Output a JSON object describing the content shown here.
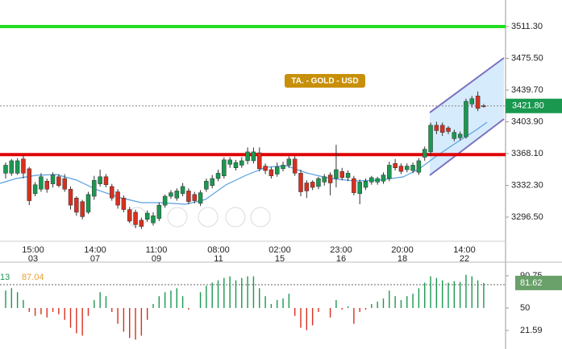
{
  "chart_data": {
    "type": "candlestick",
    "title": "TA. - GOLD - USD",
    "x_labels": [
      {
        "time": "15:00",
        "date": "03"
      },
      {
        "time": "14:00",
        "date": "07"
      },
      {
        "time": "11:00",
        "date": "09"
      },
      {
        "time": "08:00",
        "date": "11"
      },
      {
        "time": "02:00",
        "date": "15"
      },
      {
        "time": "23:00",
        "date": "16"
      },
      {
        "time": "20:00",
        "date": "18"
      },
      {
        "time": "14:00",
        "date": "22"
      }
    ],
    "open": [
      3346,
      3346,
      3346,
      3362,
      3351,
      3323,
      3328,
      3337,
      3334,
      3342,
      3340,
      3328,
      3318,
      3314,
      3302,
      3320,
      3334,
      3342,
      3331,
      3325,
      3318,
      3305,
      3302,
      3293,
      3294,
      3290,
      3295,
      3310,
      3320,
      3318,
      3323,
      3326,
      3322,
      3312,
      3328,
      3332,
      3340,
      3343,
      3356,
      3352,
      3355,
      3360,
      3360,
      3369,
      3354,
      3350,
      3345,
      3351,
      3355,
      3362,
      3346,
      3335,
      3336,
      3331,
      3336,
      3344,
      3340,
      3348,
      3341,
      3340,
      3323,
      3330,
      3336,
      3336,
      3337,
      3340,
      3357,
      3354,
      3350,
      3349,
      3347,
      3364,
      3370,
      3400,
      3400,
      3397,
      3385,
      3386,
      3387,
      3424,
      3433,
      3422
    ],
    "high": [
      3358,
      3362,
      3363,
      3366,
      3353,
      3336,
      3346,
      3340,
      3347,
      3345,
      3345,
      3331,
      3320,
      3316,
      3325,
      3343,
      3350,
      3345,
      3334,
      3328,
      3321,
      3308,
      3305,
      3296,
      3304,
      3302,
      3313,
      3322,
      3327,
      3329,
      3335,
      3329,
      3325,
      3327,
      3340,
      3344,
      3350,
      3364,
      3364,
      3361,
      3364,
      3375,
      3375,
      3375,
      3357,
      3353,
      3358,
      3359,
      3365,
      3365,
      3350,
      3338,
      3338,
      3342,
      3345,
      3347,
      3378,
      3352,
      3349,
      3343,
      3339,
      3340,
      3343,
      3342,
      3347,
      3359,
      3362,
      3357,
      3357,
      3358,
      3363,
      3376,
      3403,
      3404,
      3403,
      3399,
      3395,
      3393,
      3430,
      3433,
      3438,
      3424
    ],
    "low": [
      3340,
      3343,
      3344,
      3340,
      3310,
      3320,
      3325,
      3324,
      3330,
      3330,
      3325,
      3305,
      3298,
      3294,
      3300,
      3316,
      3331,
      3330,
      3315,
      3306,
      3302,
      3290,
      3284,
      3283,
      3291,
      3287,
      3292,
      3307,
      3317,
      3315,
      3320,
      3311,
      3312,
      3309,
      3325,
      3329,
      3337,
      3340,
      3352,
      3349,
      3352,
      3356,
      3357,
      3348,
      3345,
      3340,
      3342,
      3348,
      3352,
      3343,
      3320,
      3318,
      3327,
      3328,
      3332,
      3321,
      3330,
      3338,
      3337,
      3321,
      3311,
      3327,
      3333,
      3333,
      3334,
      3337,
      3349,
      3345,
      3347,
      3346,
      3344,
      3360,
      3366,
      3390,
      3388,
      3390,
      3382,
      3383,
      3385,
      3420,
      3416,
      3420
    ],
    "close": [
      3355,
      3360,
      3360,
      3346,
      3315,
      3333,
      3342,
      3328,
      3344,
      3332,
      3328,
      3310,
      3302,
      3297,
      3322,
      3338,
      3342,
      3333,
      3318,
      3310,
      3305,
      3292,
      3288,
      3286,
      3301,
      3298,
      3310,
      3320,
      3324,
      3326,
      3331,
      3314,
      3315,
      3324,
      3337,
      3340,
      3346,
      3361,
      3361,
      3358,
      3360,
      3370,
      3370,
      3351,
      3349,
      3343,
      3353,
      3355,
      3362,
      3346,
      3325,
      3326,
      3330,
      3340,
      3342,
      3335,
      3350,
      3341,
      3346,
      3324,
      3336,
      3337,
      3341,
      3340,
      3344,
      3355,
      3352,
      3348,
      3354,
      3355,
      3360,
      3373,
      3400,
      3394,
      3392,
      3393,
      3392,
      3390,
      3427,
      3430,
      3419,
      3421
    ],
    "up_color": "#1a9850",
    "down_color": "#d7301f",
    "ylim": [
      3269.3,
      3541.2
    ],
    "yticks": [
      {
        "value": 3511.3,
        "label": "3511.30"
      },
      {
        "value": 3475.5,
        "label": "3475.50"
      },
      {
        "value": 3439.7,
        "label": "3439.70"
      },
      {
        "value": 3403.9,
        "label": "3403.90"
      },
      {
        "value": 3368.1,
        "label": "3368.10"
      },
      {
        "value": 3332.3,
        "label": "3332.30"
      },
      {
        "value": 3296.5,
        "label": "3296.50"
      }
    ],
    "levels": [
      {
        "value": 3511.3,
        "color": "#22dd22"
      },
      {
        "value": 3367,
        "color": "#e00000"
      }
    ],
    "last_price": {
      "value": 3421.8,
      "label": "3421.80"
    },
    "indicator": {
      "labels": [
        "13",
        "87.04"
      ],
      "values": [
        72,
        75,
        70,
        60,
        45,
        40,
        42,
        38,
        45,
        42,
        35,
        25,
        18,
        15,
        40,
        60,
        70,
        65,
        45,
        30,
        20,
        12,
        10,
        15,
        35,
        55,
        65,
        70,
        72,
        75,
        65,
        48,
        50,
        70,
        78,
        82,
        85,
        88,
        90,
        85,
        88,
        90,
        90,
        75,
        65,
        55,
        60,
        62,
        68,
        40,
        25,
        22,
        28,
        45,
        50,
        38,
        60,
        48,
        52,
        30,
        45,
        48,
        55,
        58,
        62,
        72,
        65,
        60,
        65,
        68,
        75,
        82,
        90,
        88,
        85,
        82,
        84,
        83,
        92,
        90,
        85,
        81.62
      ],
      "baseline": 50,
      "ylim": [
        -1.9,
        98.8
      ],
      "yticks": [
        90.75,
        50,
        21.59
      ],
      "last": 81.62
    }
  }
}
